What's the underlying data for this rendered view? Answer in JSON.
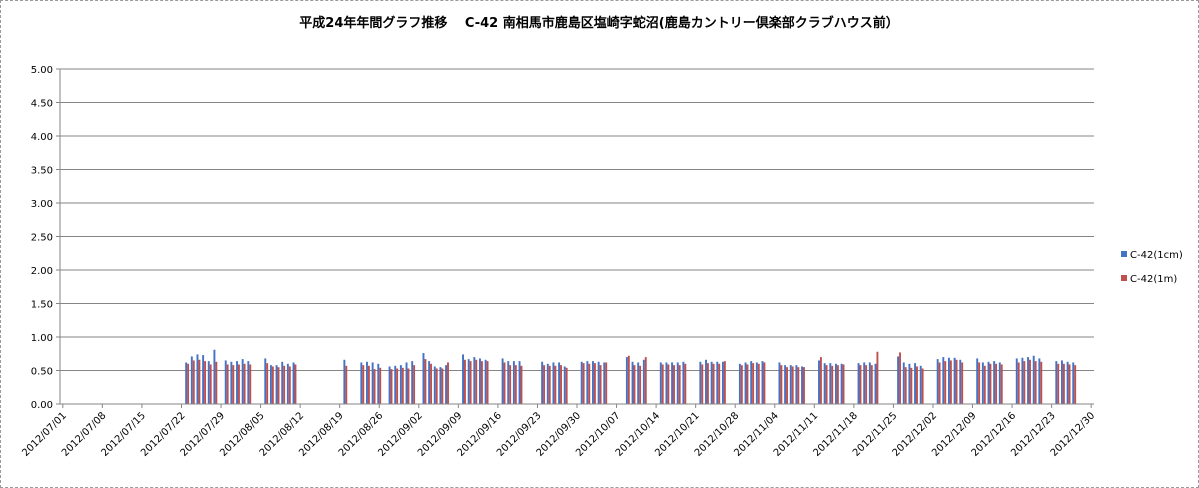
{
  "chart_data": {
    "type": "bar",
    "title": "平成24年年間グラフ推移　 C-42 南相馬市鹿島区塩崎字蛇沼(鹿島カントリー倶楽部クラブハウス前）",
    "xlabel": "",
    "ylabel": "",
    "ylim": [
      0,
      5
    ],
    "yticks": [
      "5.00",
      "4.50",
      "4.00",
      "3.50",
      "3.00",
      "2.50",
      "2.00",
      "1.50",
      "1.00",
      "0.50",
      "0.00"
    ],
    "x_range": [
      "2012/07/01",
      "2012/12/30"
    ],
    "xticks": [
      "2012/07/01",
      "2012/07/08",
      "2012/07/15",
      "2012/07/22",
      "2012/07/29",
      "2012/08/05",
      "2012/08/12",
      "2012/08/19",
      "2012/08/26",
      "2012/09/02",
      "2012/09/09",
      "2012/09/16",
      "2012/09/23",
      "2012/09/30",
      "2012/10/07",
      "2012/10/14",
      "2012/10/21",
      "2012/10/28",
      "2012/11/04",
      "2012/11/11",
      "2012/11/18",
      "2012/11/25",
      "2012/12/02",
      "2012/12/09",
      "2012/12/16",
      "2012/12/23",
      "2012/12/30"
    ],
    "grid": true,
    "legend_position": "right",
    "series": [
      {
        "name": "C-42(1cm)",
        "color": "#4472c4",
        "points": [
          [
            "2012/07/23",
            0.62
          ],
          [
            "2012/07/24",
            0.71
          ],
          [
            "2012/07/25",
            0.74
          ],
          [
            "2012/07/26",
            0.73
          ],
          [
            "2012/07/27",
            0.64
          ],
          [
            "2012/07/28",
            0.81
          ],
          [
            "2012/07/30",
            0.65
          ],
          [
            "2012/07/31",
            0.63
          ],
          [
            "2012/08/01",
            0.64
          ],
          [
            "2012/08/02",
            0.67
          ],
          [
            "2012/08/03",
            0.64
          ],
          [
            "2012/08/06",
            0.68
          ],
          [
            "2012/08/07",
            0.58
          ],
          [
            "2012/08/08",
            0.58
          ],
          [
            "2012/08/09",
            0.63
          ],
          [
            "2012/08/10",
            0.6
          ],
          [
            "2012/08/11",
            0.62
          ],
          [
            "2012/08/20",
            0.66
          ],
          [
            "2012/08/23",
            0.62
          ],
          [
            "2012/08/24",
            0.63
          ],
          [
            "2012/08/25",
            0.62
          ],
          [
            "2012/08/26",
            0.6
          ],
          [
            "2012/08/28",
            0.56
          ],
          [
            "2012/08/29",
            0.57
          ],
          [
            "2012/08/30",
            0.58
          ],
          [
            "2012/08/31",
            0.62
          ],
          [
            "2012/09/01",
            0.64
          ],
          [
            "2012/09/03",
            0.76
          ],
          [
            "2012/09/04",
            0.64
          ],
          [
            "2012/09/05",
            0.56
          ],
          [
            "2012/09/06",
            0.55
          ],
          [
            "2012/09/07",
            0.58
          ],
          [
            "2012/09/10",
            0.74
          ],
          [
            "2012/09/11",
            0.67
          ],
          [
            "2012/09/12",
            0.7
          ],
          [
            "2012/09/13",
            0.68
          ],
          [
            "2012/09/14",
            0.66
          ],
          [
            "2012/09/17",
            0.68
          ],
          [
            "2012/09/18",
            0.64
          ],
          [
            "2012/09/19",
            0.64
          ],
          [
            "2012/09/20",
            0.64
          ],
          [
            "2012/09/24",
            0.63
          ],
          [
            "2012/09/25",
            0.6
          ],
          [
            "2012/09/26",
            0.62
          ],
          [
            "2012/09/27",
            0.62
          ],
          [
            "2012/09/28",
            0.56
          ],
          [
            "2012/10/01",
            0.63
          ],
          [
            "2012/10/02",
            0.64
          ],
          [
            "2012/10/03",
            0.64
          ],
          [
            "2012/10/04",
            0.63
          ],
          [
            "2012/10/05",
            0.62
          ],
          [
            "2012/10/09",
            0.7
          ],
          [
            "2012/10/10",
            0.63
          ],
          [
            "2012/10/11",
            0.62
          ],
          [
            "2012/10/12",
            0.66
          ],
          [
            "2012/10/15",
            0.62
          ],
          [
            "2012/10/16",
            0.62
          ],
          [
            "2012/10/17",
            0.62
          ],
          [
            "2012/10/18",
            0.62
          ],
          [
            "2012/10/19",
            0.63
          ],
          [
            "2012/10/22",
            0.63
          ],
          [
            "2012/10/23",
            0.66
          ],
          [
            "2012/10/24",
            0.63
          ],
          [
            "2012/10/25",
            0.63
          ],
          [
            "2012/10/26",
            0.63
          ],
          [
            "2012/10/29",
            0.6
          ],
          [
            "2012/10/30",
            0.62
          ],
          [
            "2012/10/31",
            0.64
          ],
          [
            "2012/11/01",
            0.62
          ],
          [
            "2012/11/02",
            0.64
          ],
          [
            "2012/11/05",
            0.62
          ],
          [
            "2012/11/06",
            0.58
          ],
          [
            "2012/11/07",
            0.58
          ],
          [
            "2012/11/08",
            0.58
          ],
          [
            "2012/11/09",
            0.56
          ],
          [
            "2012/11/12",
            0.65
          ],
          [
            "2012/11/13",
            0.61
          ],
          [
            "2012/11/14",
            0.61
          ],
          [
            "2012/11/15",
            0.6
          ],
          [
            "2012/11/16",
            0.6
          ],
          [
            "2012/11/19",
            0.61
          ],
          [
            "2012/11/20",
            0.62
          ],
          [
            "2012/11/21",
            0.62
          ],
          [
            "2012/11/22",
            0.6
          ],
          [
            "2012/11/26",
            0.71
          ],
          [
            "2012/11/27",
            0.62
          ],
          [
            "2012/11/28",
            0.6
          ],
          [
            "2012/11/29",
            0.61
          ],
          [
            "2012/11/30",
            0.57
          ],
          [
            "2012/12/03",
            0.67
          ],
          [
            "2012/12/04",
            0.7
          ],
          [
            "2012/12/05",
            0.69
          ],
          [
            "2012/12/06",
            0.69
          ],
          [
            "2012/12/07",
            0.66
          ],
          [
            "2012/12/10",
            0.68
          ],
          [
            "2012/12/11",
            0.62
          ],
          [
            "2012/12/12",
            0.63
          ],
          [
            "2012/12/13",
            0.64
          ],
          [
            "2012/12/14",
            0.62
          ],
          [
            "2012/12/17",
            0.68
          ],
          [
            "2012/12/18",
            0.69
          ],
          [
            "2012/12/19",
            0.7
          ],
          [
            "2012/12/20",
            0.72
          ],
          [
            "2012/12/21",
            0.68
          ],
          [
            "2012/12/24",
            0.64
          ],
          [
            "2012/12/25",
            0.65
          ],
          [
            "2012/12/26",
            0.63
          ],
          [
            "2012/12/27",
            0.62
          ]
        ]
      },
      {
        "name": "C-42(1m)",
        "color": "#c0504d",
        "points": [
          [
            "2012/07/23",
            0.6
          ],
          [
            "2012/07/24",
            0.65
          ],
          [
            "2012/07/25",
            0.66
          ],
          [
            "2012/07/26",
            0.64
          ],
          [
            "2012/07/27",
            0.59
          ],
          [
            "2012/07/28",
            0.63
          ],
          [
            "2012/07/30",
            0.59
          ],
          [
            "2012/07/31",
            0.58
          ],
          [
            "2012/08/01",
            0.59
          ],
          [
            "2012/08/02",
            0.6
          ],
          [
            "2012/08/03",
            0.59
          ],
          [
            "2012/08/06",
            0.61
          ],
          [
            "2012/08/07",
            0.56
          ],
          [
            "2012/08/08",
            0.55
          ],
          [
            "2012/08/09",
            0.57
          ],
          [
            "2012/08/10",
            0.56
          ],
          [
            "2012/08/11",
            0.59
          ],
          [
            "2012/08/20",
            0.57
          ],
          [
            "2012/08/23",
            0.58
          ],
          [
            "2012/08/24",
            0.57
          ],
          [
            "2012/08/25",
            0.52
          ],
          [
            "2012/08/26",
            0.54
          ],
          [
            "2012/08/28",
            0.52
          ],
          [
            "2012/08/29",
            0.53
          ],
          [
            "2012/08/30",
            0.54
          ],
          [
            "2012/08/31",
            0.53
          ],
          [
            "2012/09/01",
            0.58
          ],
          [
            "2012/09/03",
            0.67
          ],
          [
            "2012/09/04",
            0.6
          ],
          [
            "2012/09/05",
            0.53
          ],
          [
            "2012/09/06",
            0.53
          ],
          [
            "2012/09/07",
            0.62
          ],
          [
            "2012/09/10",
            0.66
          ],
          [
            "2012/09/11",
            0.64
          ],
          [
            "2012/09/12",
            0.66
          ],
          [
            "2012/09/13",
            0.64
          ],
          [
            "2012/09/14",
            0.64
          ],
          [
            "2012/09/17",
            0.62
          ],
          [
            "2012/09/18",
            0.58
          ],
          [
            "2012/09/19",
            0.58
          ],
          [
            "2012/09/20",
            0.57
          ],
          [
            "2012/09/24",
            0.58
          ],
          [
            "2012/09/25",
            0.57
          ],
          [
            "2012/09/26",
            0.57
          ],
          [
            "2012/09/27",
            0.58
          ],
          [
            "2012/09/28",
            0.54
          ],
          [
            "2012/10/01",
            0.61
          ],
          [
            "2012/10/02",
            0.6
          ],
          [
            "2012/10/03",
            0.61
          ],
          [
            "2012/10/04",
            0.58
          ],
          [
            "2012/10/05",
            0.62
          ],
          [
            "2012/10/09",
            0.72
          ],
          [
            "2012/10/10",
            0.58
          ],
          [
            "2012/10/11",
            0.57
          ],
          [
            "2012/10/12",
            0.7
          ],
          [
            "2012/10/15",
            0.59
          ],
          [
            "2012/10/16",
            0.59
          ],
          [
            "2012/10/17",
            0.58
          ],
          [
            "2012/10/18",
            0.58
          ],
          [
            "2012/10/19",
            0.6
          ],
          [
            "2012/10/22",
            0.59
          ],
          [
            "2012/10/23",
            0.61
          ],
          [
            "2012/10/24",
            0.6
          ],
          [
            "2012/10/25",
            0.6
          ],
          [
            "2012/10/26",
            0.64
          ],
          [
            "2012/10/29",
            0.58
          ],
          [
            "2012/10/30",
            0.59
          ],
          [
            "2012/10/31",
            0.61
          ],
          [
            "2012/11/01",
            0.6
          ],
          [
            "2012/11/02",
            0.62
          ],
          [
            "2012/11/05",
            0.58
          ],
          [
            "2012/11/06",
            0.55
          ],
          [
            "2012/11/07",
            0.56
          ],
          [
            "2012/11/08",
            0.55
          ],
          [
            "2012/11/09",
            0.55
          ],
          [
            "2012/11/12",
            0.7
          ],
          [
            "2012/11/13",
            0.58
          ],
          [
            "2012/11/14",
            0.57
          ],
          [
            "2012/11/15",
            0.58
          ],
          [
            "2012/11/16",
            0.59
          ],
          [
            "2012/11/19",
            0.58
          ],
          [
            "2012/11/20",
            0.58
          ],
          [
            "2012/11/21",
            0.58
          ],
          [
            "2012/11/22",
            0.78
          ],
          [
            "2012/11/26",
            0.77
          ],
          [
            "2012/11/27",
            0.55
          ],
          [
            "2012/11/28",
            0.54
          ],
          [
            "2012/11/29",
            0.56
          ],
          [
            "2012/11/30",
            0.53
          ],
          [
            "2012/12/03",
            0.62
          ],
          [
            "2012/12/04",
            0.64
          ],
          [
            "2012/12/05",
            0.65
          ],
          [
            "2012/12/06",
            0.66
          ],
          [
            "2012/12/07",
            0.62
          ],
          [
            "2012/12/10",
            0.62
          ],
          [
            "2012/12/11",
            0.57
          ],
          [
            "2012/12/12",
            0.6
          ],
          [
            "2012/12/13",
            0.6
          ],
          [
            "2012/12/14",
            0.59
          ],
          [
            "2012/12/17",
            0.62
          ],
          [
            "2012/12/18",
            0.64
          ],
          [
            "2012/12/19",
            0.66
          ],
          [
            "2012/12/20",
            0.64
          ],
          [
            "2012/12/21",
            0.63
          ],
          [
            "2012/12/24",
            0.6
          ],
          [
            "2012/12/25",
            0.6
          ],
          [
            "2012/12/26",
            0.59
          ],
          [
            "2012/12/27",
            0.58
          ]
        ]
      }
    ]
  }
}
